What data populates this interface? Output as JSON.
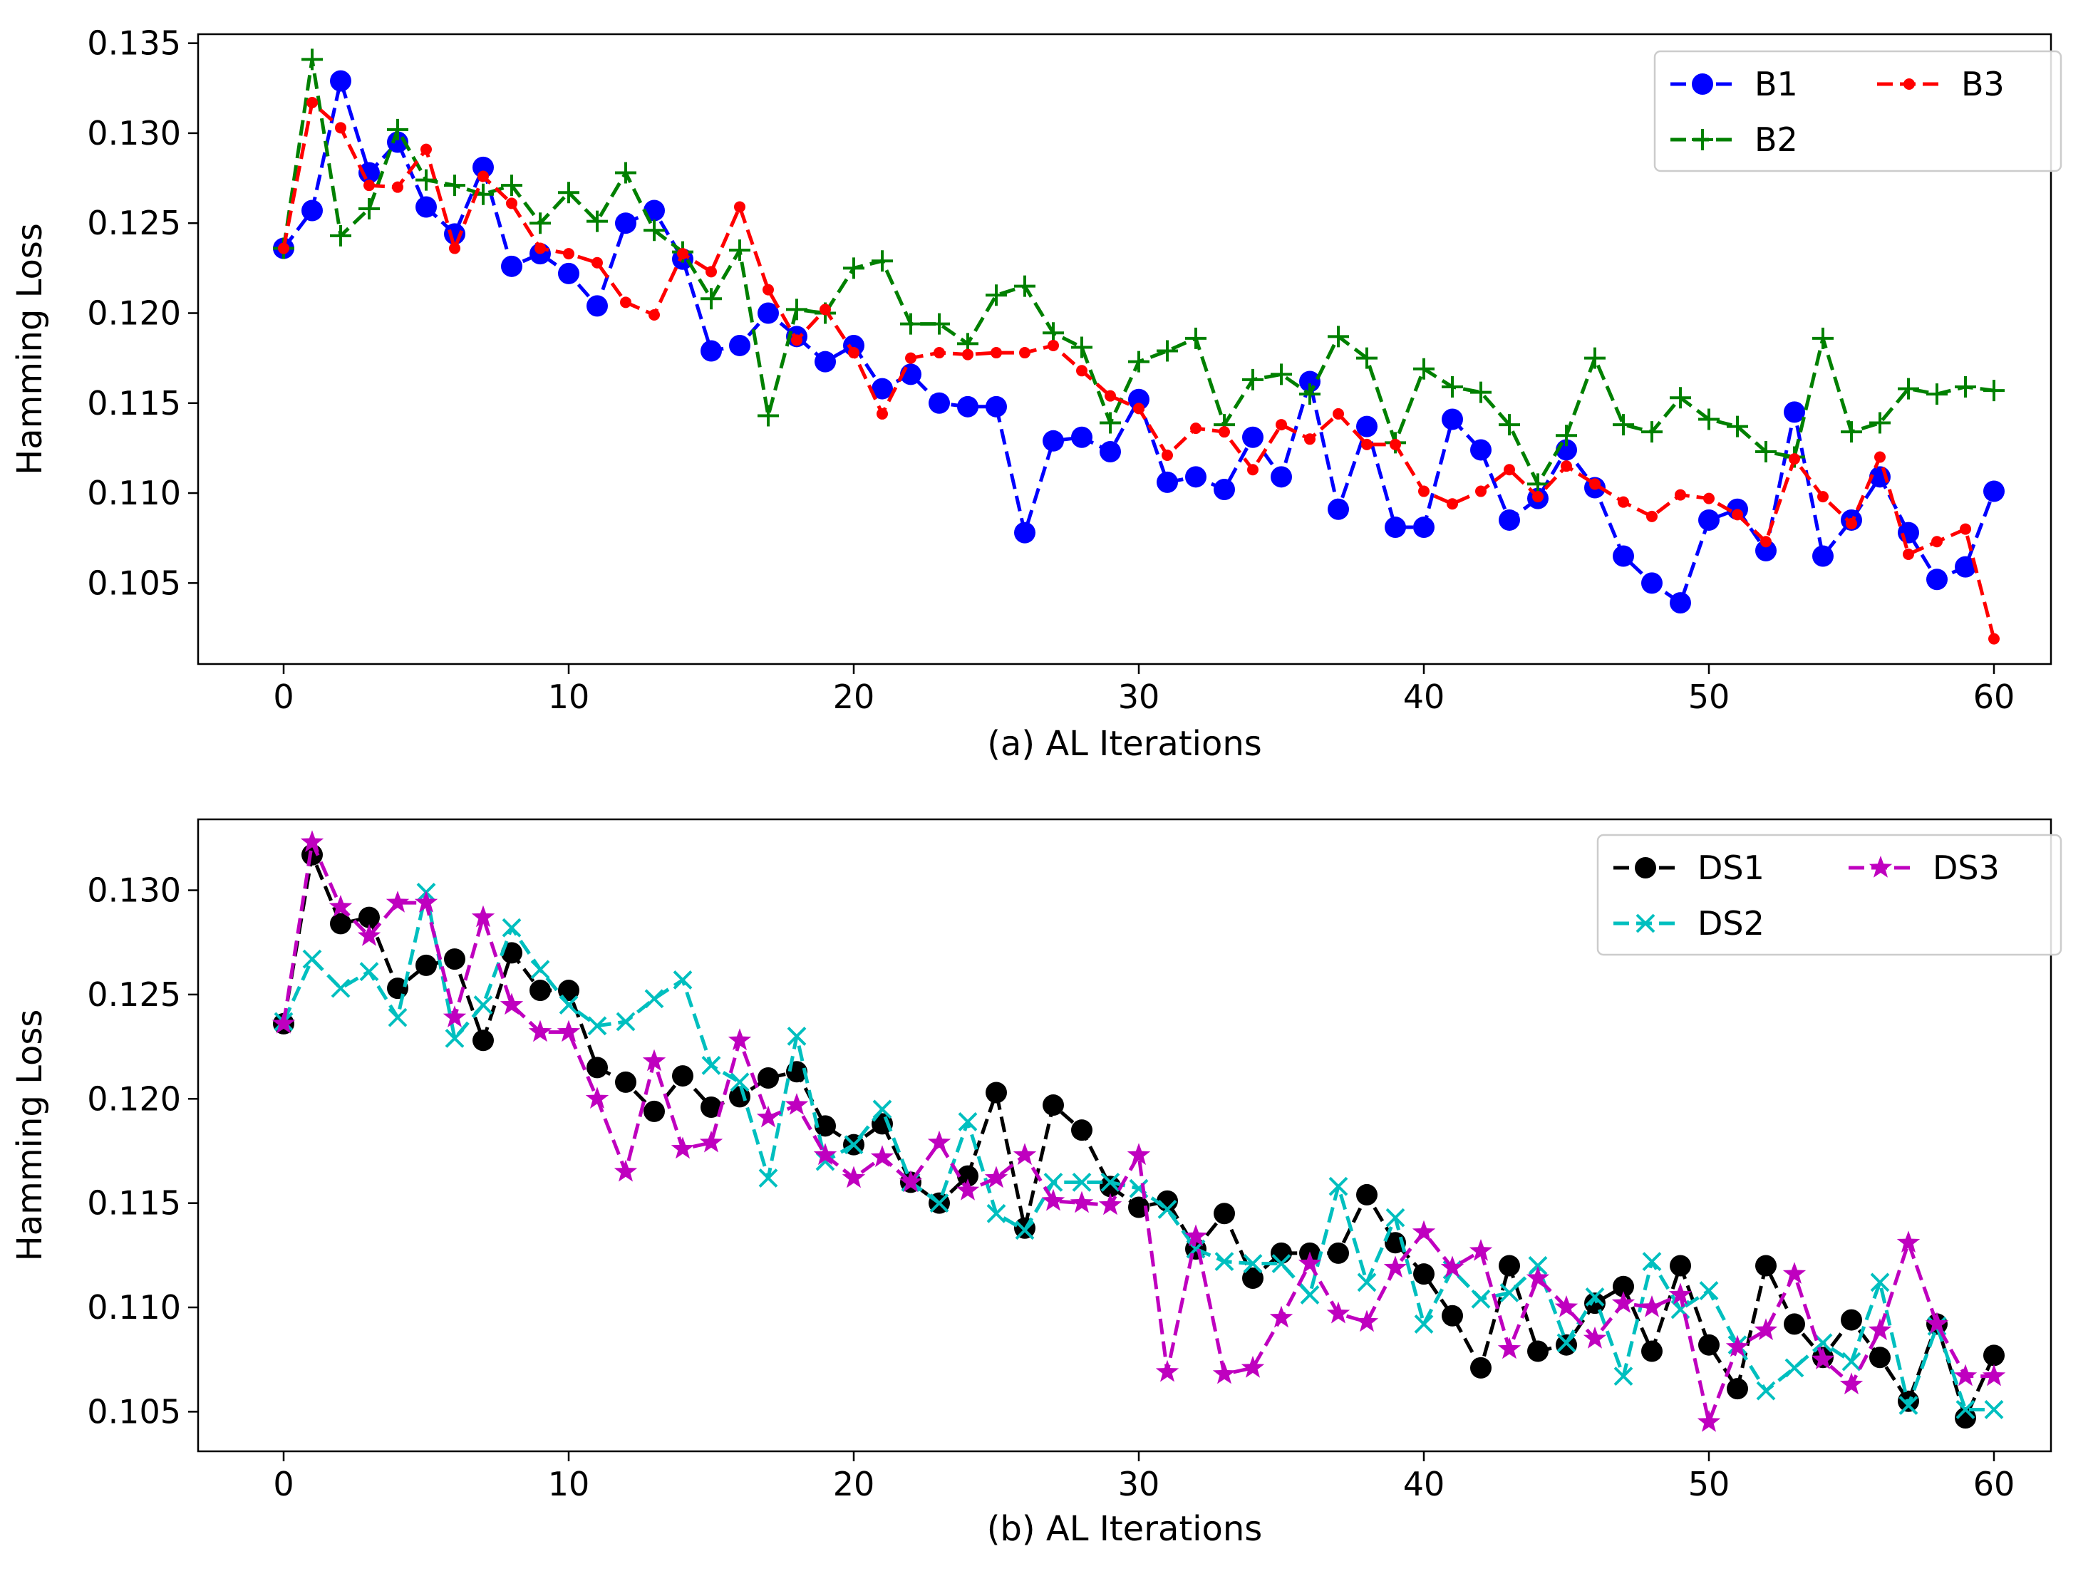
{
  "chart_data": [
    {
      "type": "line",
      "xlabel": "(a) AL Iterations",
      "ylabel": "Hamming Loss",
      "xlim": [
        -3,
        62
      ],
      "ylim": [
        0.1005,
        0.1355
      ],
      "xticks": [
        0,
        10,
        20,
        30,
        40,
        50,
        60
      ],
      "yticks": [
        0.105,
        0.11,
        0.115,
        0.12,
        0.125,
        0.13,
        0.135
      ],
      "ytick_labels": [
        "0.105",
        "0.110",
        "0.115",
        "0.120",
        "0.125",
        "0.130",
        "0.135"
      ],
      "legend_position": "top-right",
      "legend_columns": 2,
      "series": [
        {
          "name": "B1",
          "color": "#0000ff",
          "marker": "circle",
          "values": [
            0.1236,
            0.1257,
            0.1329,
            0.1278,
            0.1295,
            0.1259,
            0.1244,
            0.1281,
            0.1226,
            0.1233,
            0.1222,
            0.1204,
            0.125,
            0.1257,
            0.123,
            0.1179,
            0.1182,
            0.12,
            0.1187,
            0.1173,
            0.1182,
            0.1158,
            0.1166,
            0.115,
            0.1148,
            0.1148,
            0.1078,
            0.1129,
            0.1131,
            0.1123,
            0.1152,
            0.1106,
            0.1109,
            0.1102,
            0.1131,
            0.1109,
            0.1162,
            0.1091,
            0.1137,
            0.1081,
            0.1081,
            0.1141,
            0.1124,
            0.1085,
            0.1097,
            0.1124,
            0.1103,
            0.1065,
            0.105,
            0.1039,
            0.1085,
            0.1091,
            0.1068,
            0.1145,
            0.1065,
            0.1085,
            0.1109,
            0.1078,
            0.1052,
            0.1059,
            0.1101
          ]
        },
        {
          "name": "B2",
          "color": "#008000",
          "marker": "plus",
          "values": [
            0.1236,
            0.1341,
            0.1243,
            0.1258,
            0.1302,
            0.1274,
            0.1271,
            0.1266,
            0.1271,
            0.125,
            0.1267,
            0.1251,
            0.1278,
            0.1246,
            0.1234,
            0.1208,
            0.1235,
            0.1143,
            0.1202,
            0.12,
            0.1225,
            0.1229,
            0.1194,
            0.1194,
            0.1183,
            0.121,
            0.1215,
            0.1189,
            0.1181,
            0.1139,
            0.1173,
            0.1179,
            0.1186,
            0.1138,
            0.1163,
            0.1166,
            0.1155,
            0.1187,
            0.1175,
            0.1128,
            0.1169,
            0.1159,
            0.1156,
            0.1138,
            0.1105,
            0.1132,
            0.1175,
            0.1138,
            0.1134,
            0.1153,
            0.1141,
            0.1137,
            0.1123,
            0.112,
            0.1186,
            0.1134,
            0.1139,
            0.1158,
            0.1155,
            0.1159,
            0.1157
          ]
        },
        {
          "name": "B3",
          "color": "#ff0000",
          "marker": "small-dot",
          "values": [
            0.1236,
            0.1317,
            0.1303,
            0.1271,
            0.127,
            0.1291,
            0.1236,
            0.1276,
            0.1261,
            0.1236,
            0.1233,
            0.1228,
            0.1206,
            0.1199,
            0.1233,
            0.1223,
            0.1259,
            0.1213,
            0.1185,
            0.1202,
            0.1178,
            0.1144,
            0.1175,
            0.1178,
            0.1177,
            0.1178,
            0.1178,
            0.1182,
            0.1168,
            0.1154,
            0.1147,
            0.1121,
            0.1136,
            0.1134,
            0.1113,
            0.1138,
            0.113,
            0.1144,
            0.1127,
            0.1127,
            0.1101,
            0.1094,
            0.1101,
            0.1113,
            0.1098,
            0.1115,
            0.1105,
            0.1095,
            0.1087,
            0.1099,
            0.1097,
            0.1088,
            0.1073,
            0.1119,
            0.1098,
            0.1083,
            0.112,
            0.1066,
            0.1073,
            0.108,
            0.1019
          ]
        }
      ]
    },
    {
      "type": "line",
      "xlabel": "(b) AL Iterations",
      "ylabel": "Hamming Loss",
      "xlim": [
        -3,
        62
      ],
      "ylim": [
        0.1031,
        0.1334
      ],
      "xticks": [
        0,
        10,
        20,
        30,
        40,
        50,
        60
      ],
      "yticks": [
        0.105,
        0.11,
        0.115,
        0.12,
        0.125,
        0.13
      ],
      "ytick_labels": [
        "0.105",
        "0.110",
        "0.115",
        "0.120",
        "0.125",
        "0.130"
      ],
      "legend_position": "top-right",
      "legend_columns": 2,
      "series": [
        {
          "name": "DS1",
          "color": "#000000",
          "marker": "circle",
          "values": [
            0.1236,
            0.1317,
            0.1284,
            0.1287,
            0.1253,
            0.1264,
            0.1267,
            0.1228,
            0.127,
            0.1252,
            0.1252,
            0.1215,
            0.1208,
            0.1194,
            0.1211,
            0.1196,
            0.1201,
            0.121,
            0.1213,
            0.1187,
            0.1178,
            0.1188,
            0.116,
            0.115,
            0.1163,
            0.1203,
            0.1138,
            0.1197,
            0.1185,
            0.1158,
            0.1148,
            0.1151,
            0.1128,
            0.1145,
            0.1114,
            0.1126,
            0.1126,
            0.1126,
            0.1154,
            0.1131,
            0.1116,
            0.1096,
            0.1071,
            0.112,
            0.1079,
            0.1082,
            0.1102,
            0.111,
            0.1079,
            0.112,
            0.1082,
            0.1061,
            0.112,
            0.1092,
            0.1076,
            0.1094,
            0.1076,
            0.1055,
            0.1092,
            0.1047,
            0.1077
          ]
        },
        {
          "name": "DS2",
          "color": "#00bfbf",
          "marker": "x",
          "values": [
            0.1237,
            0.1267,
            0.1253,
            0.1261,
            0.1239,
            0.1299,
            0.1229,
            0.1245,
            0.1282,
            0.1262,
            0.1245,
            0.1235,
            0.1237,
            0.1248,
            0.1257,
            0.1216,
            0.1208,
            0.1162,
            0.123,
            0.117,
            0.1178,
            0.1195,
            0.116,
            0.115,
            0.1189,
            0.1145,
            0.1137,
            0.116,
            0.116,
            0.116,
            0.1157,
            0.1147,
            0.1128,
            0.1122,
            0.1121,
            0.1121,
            0.1106,
            0.1158,
            0.1112,
            0.1143,
            0.1092,
            0.1118,
            0.1104,
            0.1107,
            0.112,
            0.1083,
            0.1105,
            0.1067,
            0.1122,
            0.1099,
            0.1108,
            0.1082,
            0.106,
            0.1071,
            0.1083,
            0.1074,
            0.1112,
            0.1053,
            0.1091,
            0.1051,
            0.1051
          ]
        },
        {
          "name": "DS3",
          "color": "#bf00bf",
          "marker": "star",
          "values": [
            0.1236,
            0.1323,
            0.1292,
            0.1278,
            0.1294,
            0.1294,
            0.1239,
            0.1287,
            0.1245,
            0.1232,
            0.1232,
            0.12,
            0.1165,
            0.1218,
            0.1176,
            0.1179,
            0.1228,
            0.1191,
            0.1197,
            0.1173,
            0.1162,
            0.1172,
            0.116,
            0.1179,
            0.1156,
            0.1162,
            0.1173,
            0.1151,
            0.115,
            0.1149,
            0.1173,
            0.1069,
            0.1134,
            0.1068,
            0.1071,
            0.1095,
            0.1121,
            0.1097,
            0.1093,
            0.1119,
            0.1136,
            0.1119,
            0.1127,
            0.108,
            0.1114,
            0.11,
            0.1085,
            0.1102,
            0.11,
            0.1106,
            0.1045,
            0.1081,
            0.1089,
            0.1116,
            0.1075,
            0.1063,
            0.1089,
            0.1131,
            0.1092,
            0.1067,
            0.1067
          ]
        }
      ]
    }
  ]
}
